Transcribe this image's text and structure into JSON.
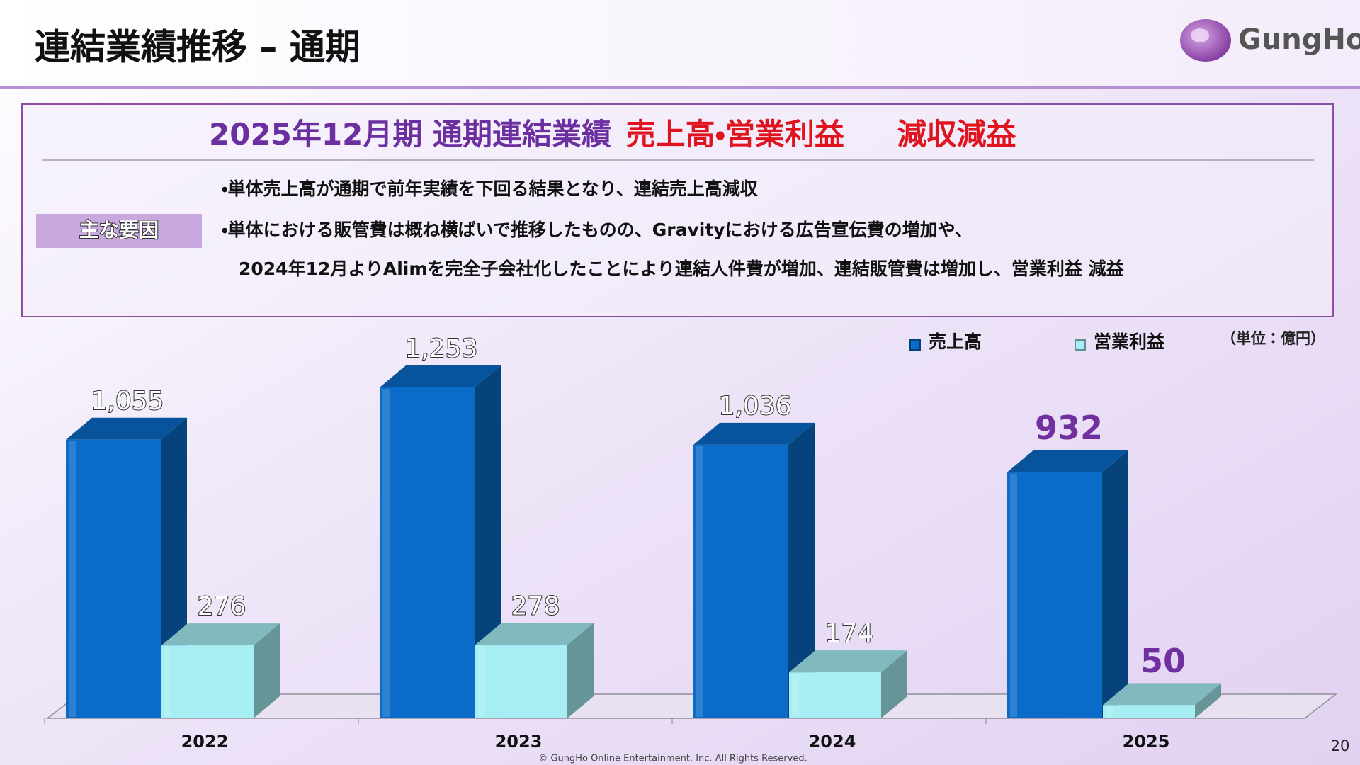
{
  "header": {
    "title": "連結業績推移 – 通期",
    "logo": "GungHo"
  },
  "summary": {
    "heading_period": "2025年12月期 通期連結業績",
    "heading_metrics": "売上高・営業利益",
    "heading_result": "減収減益",
    "factor_label": "主な要因",
    "bullets": [
      "・単体売上高が通期で前年実績を下回る結果となり、連結売上高減収",
      "・単体における販管費は概ね横ばいで推移したものの、Gravityにおける広告宣伝費の増加や、",
      "2024年12月よりAlimを完全子会社化したことにより連結人件費が増加、連結販管費は増加し、営業利益 減益"
    ]
  },
  "chart_data": {
    "type": "bar",
    "unit_note": "（単位：億円）",
    "categories": [
      "2022",
      "2023",
      "2024",
      "2025"
    ],
    "series": [
      {
        "name": "売上高",
        "color": "#0a6cc8",
        "values": [
          1055,
          1253,
          1036,
          932
        ],
        "value_labels": [
          "1,055",
          "1,253",
          "1,036",
          "932"
        ]
      },
      {
        "name": "営業利益",
        "color": "#a6eef3",
        "values": [
          276,
          278,
          174,
          50
        ]
      }
    ]
  },
  "footer": {
    "copyright": "© GungHo Online Entertainment, Inc. All Rights Reserved.",
    "page": "20"
  }
}
